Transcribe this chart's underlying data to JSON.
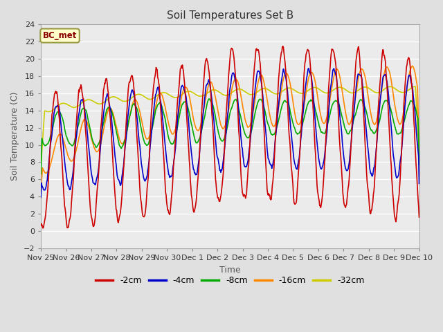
{
  "title": "Soil Temperatures Set B",
  "xlabel": "Time",
  "ylabel": "Soil Temperature (C)",
  "ylim": [
    -2,
    24
  ],
  "yticks": [
    -2,
    0,
    2,
    4,
    6,
    8,
    10,
    12,
    14,
    16,
    18,
    20,
    22,
    24
  ],
  "legend_label": "BC_met",
  "series_labels": [
    "-2cm",
    "-4cm",
    "-8cm",
    "-16cm",
    "-32cm"
  ],
  "series_colors": [
    "#cc0000",
    "#0000cc",
    "#00aa00",
    "#ff8800",
    "#cccc00"
  ],
  "xtick_labels": [
    "Nov 25",
    "Nov 26",
    "Nov 27",
    "Nov 28",
    "Nov 29",
    "Nov 30",
    "Dec 1",
    "Dec 2",
    "Dec 3",
    "Dec 4",
    "Dec 5",
    "Dec 6",
    "Dec 7",
    "Dec 8",
    "Dec 9",
    "Dec 10"
  ],
  "background_color": "#e0e0e0",
  "plot_bg_color": "#ebebeb",
  "grid_color": "#ffffff",
  "linewidth": 1.2,
  "n_points": 720,
  "n_days": 15
}
